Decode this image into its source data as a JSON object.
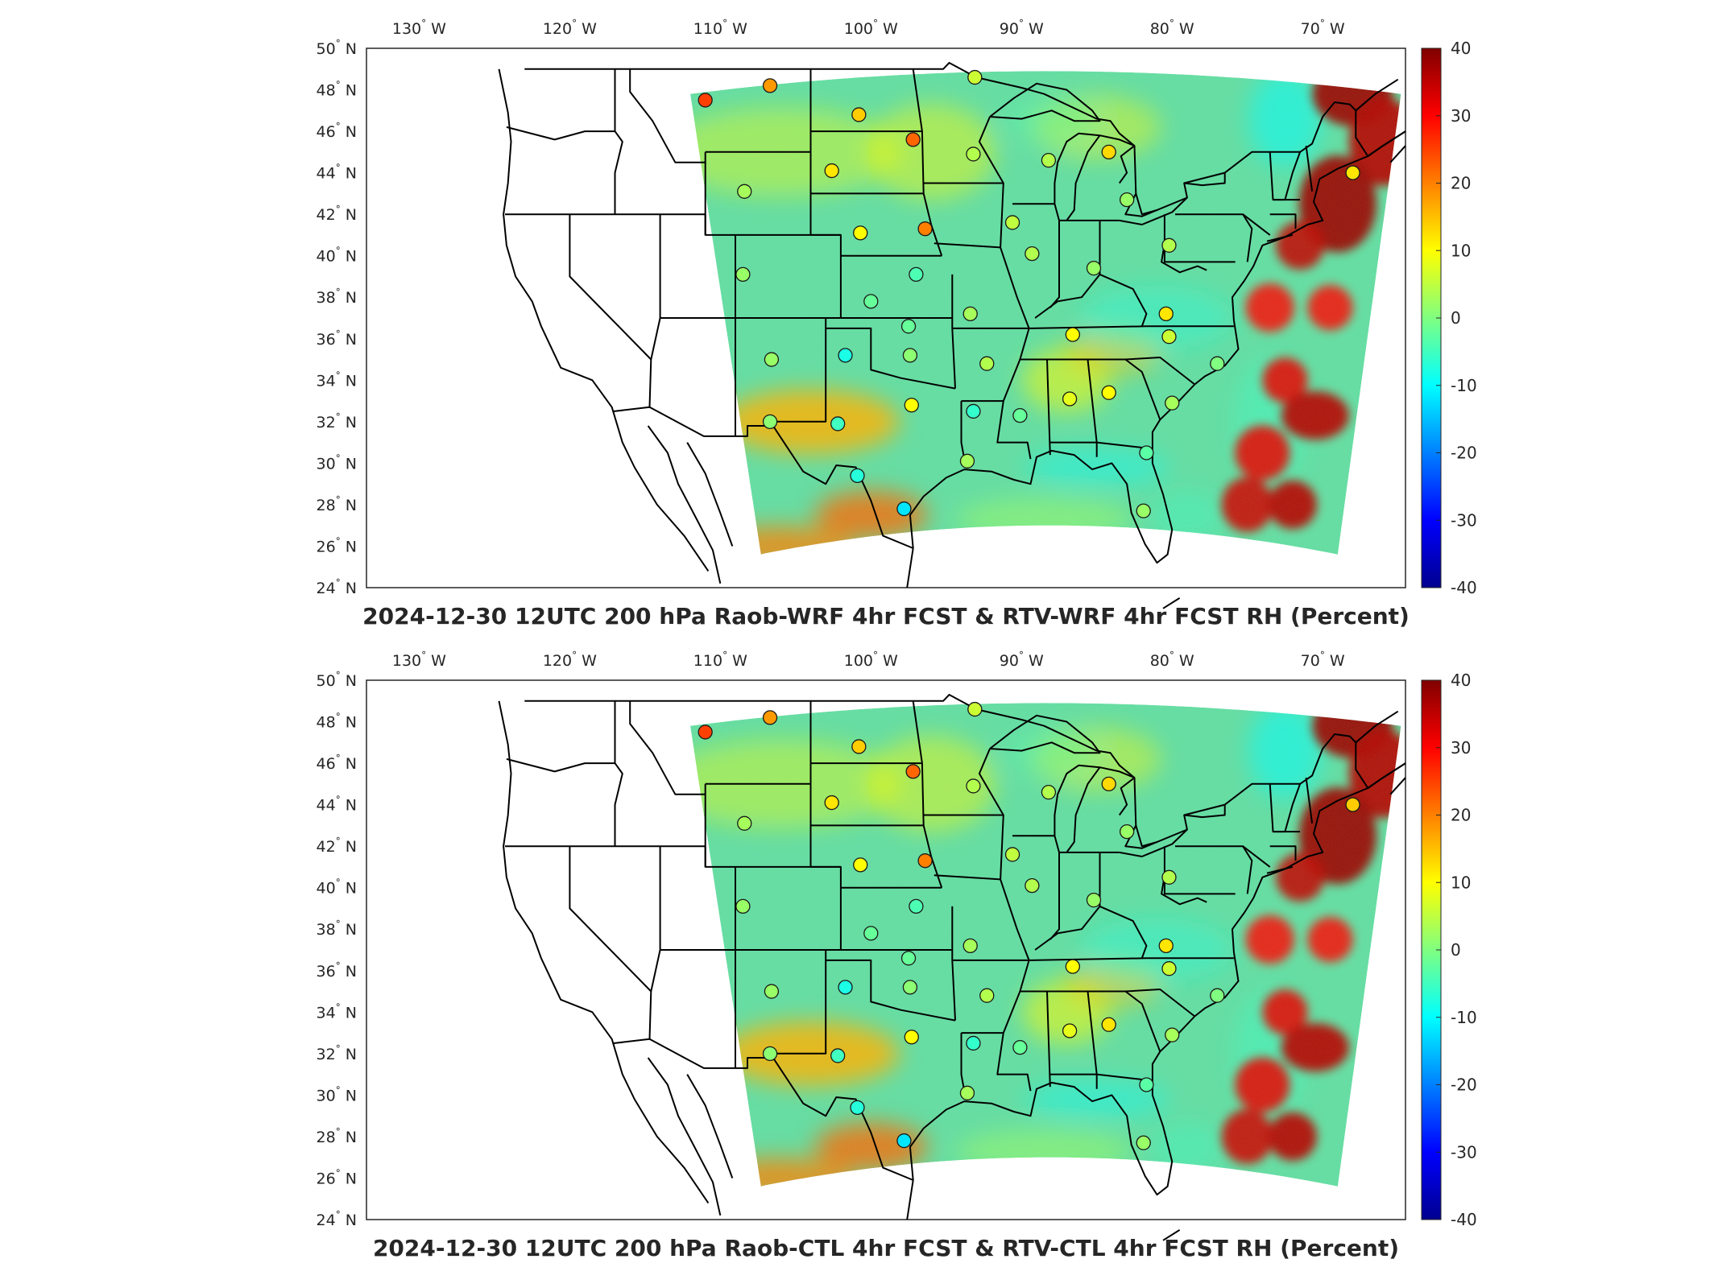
{
  "colorscale": {
    "stops": [
      "#00008f",
      "#0000ff",
      "#0080ff",
      "#00ffff",
      "#80ff80",
      "#ffff00",
      "#ff8000",
      "#ff0000",
      "#800000"
    ],
    "ticks": [
      40,
      30,
      20,
      10,
      0,
      -10,
      -20,
      -30,
      -40
    ]
  },
  "map_colors": {
    "land": "#5fe0a8",
    "borders": "#000000",
    "station_stroke": "#1a1a1a"
  },
  "axes": {
    "lon_ticks": [
      "130",
      "120",
      "110",
      "100",
      "90",
      "80",
      "70"
    ],
    "lon_hemi": "W",
    "lat_ticks": [
      "50",
      "48",
      "46",
      "44",
      "42",
      "40",
      "38",
      "36",
      "34",
      "32",
      "30",
      "28",
      "26",
      "24"
    ],
    "lat_hemi": "N",
    "degree_symbol": "°"
  },
  "panels": [
    {
      "title": "2024-12-30 12UTC 200 hPa Raob-WRF 4hr FCST & RTV-WRF 4hr FCST RH (Percent)",
      "stations": [
        {
          "lon": -111.0,
          "lat": 47.5,
          "v": 25
        },
        {
          "lon": -106.7,
          "lat": 48.2,
          "v": 18
        },
        {
          "lon": -100.8,
          "lat": 46.8,
          "v": 14
        },
        {
          "lon": -97.2,
          "lat": 45.6,
          "v": 22
        },
        {
          "lon": -93.1,
          "lat": 48.6,
          "v": 6
        },
        {
          "lon": -93.2,
          "lat": 44.9,
          "v": 4
        },
        {
          "lon": -84.2,
          "lat": 45.0,
          "v": 13
        },
        {
          "lon": -88.2,
          "lat": 44.6,
          "v": 4
        },
        {
          "lon": -102.6,
          "lat": 44.1,
          "v": 12
        },
        {
          "lon": -108.4,
          "lat": 43.1,
          "v": 3
        },
        {
          "lon": -100.7,
          "lat": 41.1,
          "v": 10
        },
        {
          "lon": -96.4,
          "lat": 41.3,
          "v": 20
        },
        {
          "lon": -90.6,
          "lat": 41.6,
          "v": 5
        },
        {
          "lon": -83.0,
          "lat": 42.7,
          "v": 2
        },
        {
          "lon": -68.0,
          "lat": 44.0,
          "v": 12
        },
        {
          "lon": -89.3,
          "lat": 40.1,
          "v": 4
        },
        {
          "lon": -85.2,
          "lat": 39.4,
          "v": 2
        },
        {
          "lon": -80.2,
          "lat": 40.5,
          "v": 4
        },
        {
          "lon": -108.5,
          "lat": 39.1,
          "v": 2
        },
        {
          "lon": -97.0,
          "lat": 39.1,
          "v": -4
        },
        {
          "lon": -100.0,
          "lat": 37.8,
          "v": -2
        },
        {
          "lon": -93.4,
          "lat": 37.2,
          "v": 3
        },
        {
          "lon": -97.5,
          "lat": 36.6,
          "v": -2
        },
        {
          "lon": -86.6,
          "lat": 36.2,
          "v": 10
        },
        {
          "lon": -80.4,
          "lat": 37.2,
          "v": 12
        },
        {
          "lon": -80.2,
          "lat": 36.1,
          "v": 6
        },
        {
          "lon": -106.6,
          "lat": 35.0,
          "v": 2
        },
        {
          "lon": -101.7,
          "lat": 35.2,
          "v": -8
        },
        {
          "lon": -97.4,
          "lat": 35.2,
          "v": 1
        },
        {
          "lon": -92.3,
          "lat": 34.8,
          "v": 4
        },
        {
          "lon": -77.0,
          "lat": 34.8,
          "v": 0
        },
        {
          "lon": -97.3,
          "lat": 32.8,
          "v": 10
        },
        {
          "lon": -86.8,
          "lat": 33.1,
          "v": 8
        },
        {
          "lon": -84.2,
          "lat": 33.4,
          "v": 10
        },
        {
          "lon": -80.0,
          "lat": 32.9,
          "v": 3
        },
        {
          "lon": -106.7,
          "lat": 32.0,
          "v": 1
        },
        {
          "lon": -102.2,
          "lat": 31.9,
          "v": -5
        },
        {
          "lon": -93.2,
          "lat": 32.5,
          "v": -6
        },
        {
          "lon": -90.1,
          "lat": 32.3,
          "v": -2
        },
        {
          "lon": -93.6,
          "lat": 30.1,
          "v": 3
        },
        {
          "lon": -81.7,
          "lat": 30.5,
          "v": -3
        },
        {
          "lon": -100.9,
          "lat": 29.4,
          "v": -7
        },
        {
          "lon": -97.8,
          "lat": 27.8,
          "v": -12
        },
        {
          "lon": -81.9,
          "lat": 27.7,
          "v": 2
        }
      ]
    },
    {
      "title": "2024-12-30 12UTC 200 hPa Raob-CTL 4hr FCST & RTV-CTL 4hr FCST RH (Percent)",
      "stations": [
        {
          "lon": -111.0,
          "lat": 47.5,
          "v": 25
        },
        {
          "lon": -106.7,
          "lat": 48.2,
          "v": 18
        },
        {
          "lon": -100.8,
          "lat": 46.8,
          "v": 14
        },
        {
          "lon": -97.2,
          "lat": 45.6,
          "v": 22
        },
        {
          "lon": -93.1,
          "lat": 48.6,
          "v": 6
        },
        {
          "lon": -93.2,
          "lat": 44.9,
          "v": 4
        },
        {
          "lon": -84.2,
          "lat": 45.0,
          "v": 13
        },
        {
          "lon": -88.2,
          "lat": 44.6,
          "v": 4
        },
        {
          "lon": -102.6,
          "lat": 44.1,
          "v": 12
        },
        {
          "lon": -108.4,
          "lat": 43.1,
          "v": 3
        },
        {
          "lon": -100.7,
          "lat": 41.1,
          "v": 10
        },
        {
          "lon": -96.4,
          "lat": 41.3,
          "v": 20
        },
        {
          "lon": -90.6,
          "lat": 41.6,
          "v": 5
        },
        {
          "lon": -83.0,
          "lat": 42.7,
          "v": 2
        },
        {
          "lon": -68.0,
          "lat": 44.0,
          "v": 14
        },
        {
          "lon": -89.3,
          "lat": 40.1,
          "v": 4
        },
        {
          "lon": -85.2,
          "lat": 39.4,
          "v": 2
        },
        {
          "lon": -80.2,
          "lat": 40.5,
          "v": 4
        },
        {
          "lon": -108.5,
          "lat": 39.1,
          "v": 2
        },
        {
          "lon": -97.0,
          "lat": 39.1,
          "v": -4
        },
        {
          "lon": -100.0,
          "lat": 37.8,
          "v": -2
        },
        {
          "lon": -93.4,
          "lat": 37.2,
          "v": 3
        },
        {
          "lon": -97.5,
          "lat": 36.6,
          "v": -2
        },
        {
          "lon": -86.6,
          "lat": 36.2,
          "v": 10
        },
        {
          "lon": -80.4,
          "lat": 37.2,
          "v": 12
        },
        {
          "lon": -80.2,
          "lat": 36.1,
          "v": 6
        },
        {
          "lon": -106.6,
          "lat": 35.0,
          "v": 2
        },
        {
          "lon": -101.7,
          "lat": 35.2,
          "v": -8
        },
        {
          "lon": -97.4,
          "lat": 35.2,
          "v": 1
        },
        {
          "lon": -92.3,
          "lat": 34.8,
          "v": 4
        },
        {
          "lon": -77.0,
          "lat": 34.8,
          "v": 0
        },
        {
          "lon": -97.3,
          "lat": 32.8,
          "v": 10
        },
        {
          "lon": -86.8,
          "lat": 33.1,
          "v": 8
        },
        {
          "lon": -84.2,
          "lat": 33.4,
          "v": 12
        },
        {
          "lon": -80.0,
          "lat": 32.9,
          "v": 3
        },
        {
          "lon": -106.7,
          "lat": 32.0,
          "v": 1
        },
        {
          "lon": -102.2,
          "lat": 31.9,
          "v": -5
        },
        {
          "lon": -93.2,
          "lat": 32.5,
          "v": -6
        },
        {
          "lon": -90.1,
          "lat": 32.3,
          "v": -2
        },
        {
          "lon": -93.6,
          "lat": 30.1,
          "v": 3
        },
        {
          "lon": -81.7,
          "lat": 30.5,
          "v": -3
        },
        {
          "lon": -100.9,
          "lat": 29.4,
          "v": -7
        },
        {
          "lon": -97.8,
          "lat": 27.8,
          "v": -12
        },
        {
          "lon": -81.9,
          "lat": 27.7,
          "v": 2
        }
      ]
    }
  ]
}
